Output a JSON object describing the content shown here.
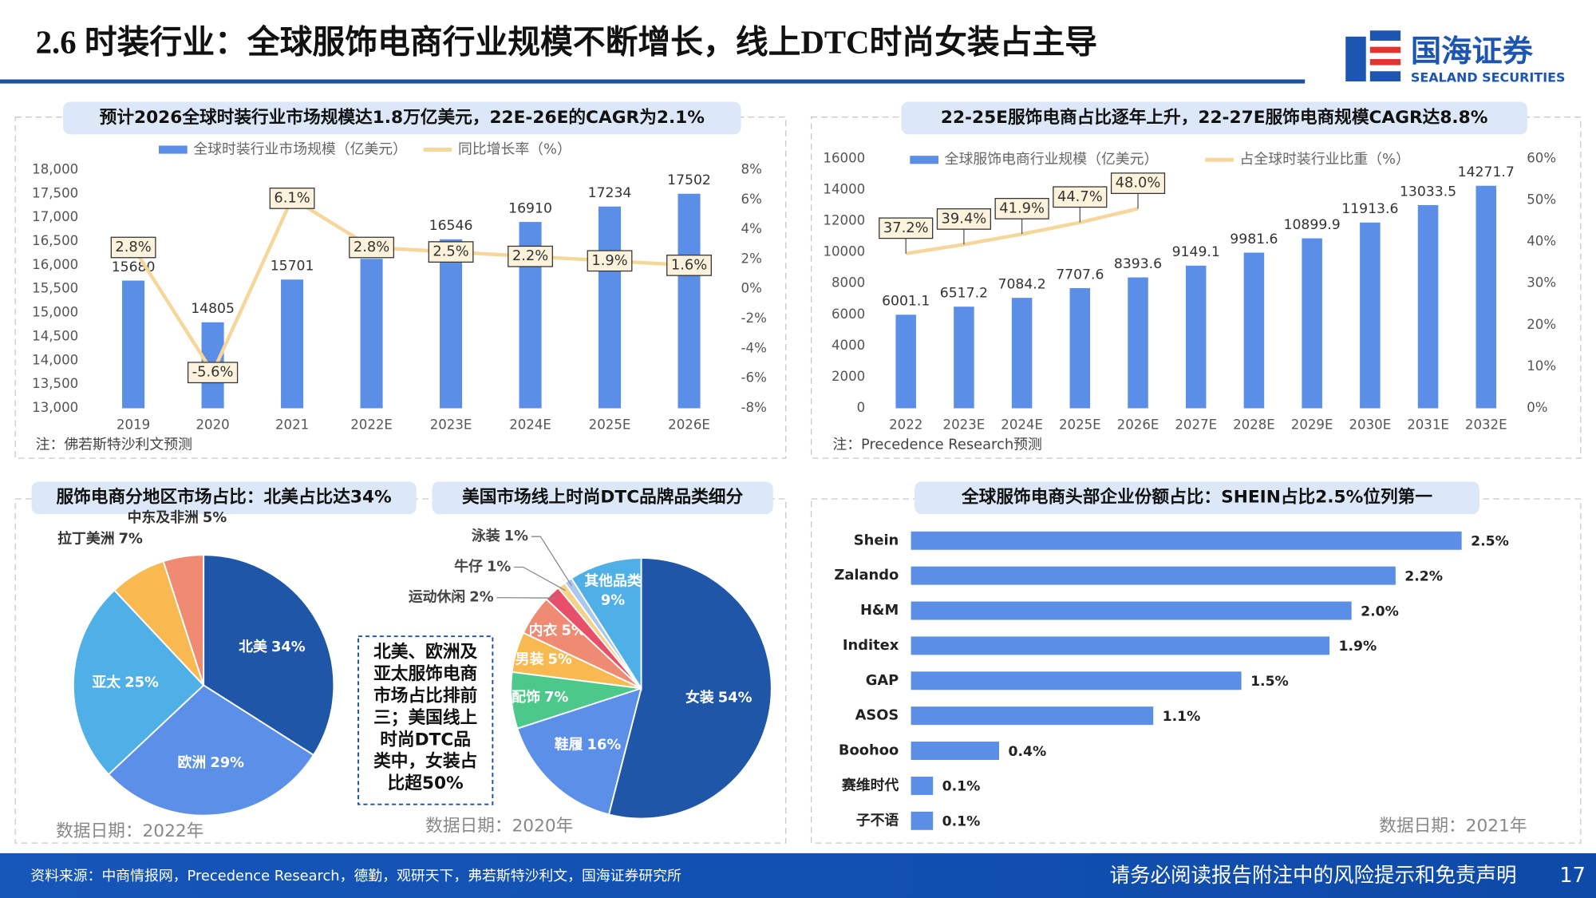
{
  "header": {
    "title": "2.6 时装行业：全球服饰电商行业规模不断增长，线上DTC时尚女装占主导",
    "logo": "国海证券",
    "logo_en": "SEALAND SECURITIES"
  },
  "chart_data": [
    {
      "type": "combo",
      "title": "预计2026全球时装行业市场规模达1.8万亿美元，22E-26E的CAGR为2.1%",
      "categories": [
        "2019",
        "2020",
        "2021",
        "2022E",
        "2023E",
        "2024E",
        "2025E",
        "2026E"
      ],
      "series": [
        {
          "name": "全球时装行业市场规模（亿美元）",
          "type": "bar",
          "color": "#5b8ee6",
          "values": [
            15680,
            14805,
            15701,
            16136,
            16546,
            16910,
            17234,
            17502
          ]
        },
        {
          "name": "同比增长率（%）",
          "type": "line",
          "axis": "y2",
          "color": "#f6d79b",
          "values": [
            2.8,
            -5.6,
            6.1,
            2.8,
            2.5,
            2.2,
            1.9,
            1.6
          ],
          "value_labels": [
            "2.8%",
            "-5.6%",
            "6.1%",
            "2.8%",
            "2.5%",
            "2.2%",
            "1.9%",
            "1.6%"
          ]
        }
      ],
      "ylim": [
        13000,
        18000
      ],
      "yticks": [
        {
          "value": 13000,
          "label": "13,000"
        },
        {
          "value": 13500,
          "label": "13,500"
        },
        {
          "value": 14000,
          "label": "14,000"
        },
        {
          "value": 14500,
          "label": "14,500"
        },
        {
          "value": 15000,
          "label": "15,000"
        },
        {
          "value": 15500,
          "label": "15,500"
        },
        {
          "value": 16000,
          "label": "16,000"
        },
        {
          "value": 16500,
          "label": "16,500"
        },
        {
          "value": 17000,
          "label": "17,000"
        },
        {
          "value": 17500,
          "label": "17,500"
        },
        {
          "value": 18000,
          "label": "18,000"
        }
      ],
      "y2lim": [
        -8,
        8
      ],
      "y2ticks": [
        {
          "value": -8,
          "label": "-8%"
        },
        {
          "value": -6,
          "label": "-6%"
        },
        {
          "value": -4,
          "label": "-4%"
        },
        {
          "value": -2,
          "label": "-2%"
        },
        {
          "value": 0,
          "label": "0%"
        },
        {
          "value": 2,
          "label": "2%"
        },
        {
          "value": 4,
          "label": "4%"
        },
        {
          "value": 6,
          "label": "6%"
        },
        {
          "value": 8,
          "label": "8%"
        }
      ],
      "grid": false,
      "note": "注：佛若斯特沙利文预测"
    },
    {
      "type": "combo",
      "title": "22-25E服饰电商占比逐年上升，22-27E服饰电商规模CAGR达8.8%",
      "categories": [
        "2022",
        "2023E",
        "2024E",
        "2025E",
        "2026E",
        "2027E",
        "2028E",
        "2029E",
        "2030E",
        "2031E",
        "2032E"
      ],
      "series": [
        {
          "name": "全球服饰电商行业规模（亿美元）",
          "type": "bar",
          "color": "#5b8ee6",
          "values": [
            6001.1,
            6517.2,
            7084.2,
            7707.6,
            8393.6,
            9149.1,
            9981.6,
            10899.9,
            11913.6,
            13033.5,
            14271.7
          ]
        },
        {
          "name": "占全球时装行业比重（%）",
          "type": "line",
          "axis": "y2",
          "color": "#f6d79b",
          "values": [
            37.2,
            39.4,
            41.9,
            44.7,
            48.0,
            null,
            null,
            null,
            null,
            null,
            null
          ],
          "value_labels": [
            "37.2%",
            "39.4%",
            "41.9%",
            "44.7%",
            "48.0%",
            null,
            null,
            null,
            null,
            null,
            null
          ]
        }
      ],
      "ylim": [
        0,
        16000
      ],
      "yticks": [
        0,
        2000,
        4000,
        6000,
        8000,
        10000,
        12000,
        14000,
        16000
      ],
      "y2lim": [
        0,
        60
      ],
      "y2ticks": [
        {
          "value": 0,
          "label": "0%"
        },
        {
          "value": 10,
          "label": "10%"
        },
        {
          "value": 20,
          "label": "20%"
        },
        {
          "value": 30,
          "label": "30%"
        },
        {
          "value": 40,
          "label": "40%"
        },
        {
          "value": 50,
          "label": "50%"
        },
        {
          "value": 60,
          "label": "60%"
        }
      ],
      "grid": false,
      "note": "注：Precedence Research预测"
    },
    {
      "type": "pie",
      "title": "服饰电商分地区市场占比：北美占比达34%",
      "categories": [
        "北美",
        "欧洲",
        "亚太",
        "拉丁美洲",
        "中东及非洲"
      ],
      "values": [
        34,
        29,
        25,
        7,
        5
      ],
      "value_labels": [
        "34%",
        "29%",
        "25%",
        "7%",
        "5%"
      ],
      "colors": [
        "#1f56a8",
        "#5b8fe8",
        "#4fb0e8",
        "#f7b950",
        "#ef8b72"
      ],
      "note": "数据日期：2022年"
    },
    {
      "type": "pie",
      "title": "美国市场线上时尚DTC品牌品类细分",
      "categories": [
        "女装",
        "鞋履",
        "配饰",
        "男装",
        "内衣",
        "运动休闲",
        "牛仔",
        "泳装",
        "其他品类"
      ],
      "values": [
        54,
        16,
        7,
        5,
        5,
        2,
        1,
        1,
        9
      ],
      "value_labels": [
        "54%",
        "16%",
        "7%",
        "5%",
        "5%",
        "2%",
        "1%",
        "1%",
        "9%"
      ],
      "colors": [
        "#1f56a8",
        "#5b8fe8",
        "#4cc98a",
        "#f7b950",
        "#ef8b72",
        "#e8506a",
        "#f5d28a",
        "#aac8f0",
        "#4fb0e8"
      ],
      "annotation": [
        "北美、欧洲及",
        "亚太服饰电商",
        "市场占比排前",
        "三；美国线上",
        "时尚DTC品",
        "类中，女装占",
        "比超50%"
      ],
      "note": "数据日期：2020年"
    },
    {
      "type": "hbar",
      "title": "全球服饰电商头部企业份额占比：SHEIN占比2.5%位列第一",
      "categories": [
        "Shein",
        "Zalando",
        "H&M",
        "Inditex",
        "GAP",
        "ASOS",
        "Boohoo",
        "赛维时代",
        "子不语"
      ],
      "values": [
        2.5,
        2.2,
        2.0,
        1.9,
        1.5,
        1.1,
        0.4,
        0.1,
        0.1
      ],
      "value_labels": [
        "2.5%",
        "2.2%",
        "2.0%",
        "1.9%",
        "1.5%",
        "1.1%",
        "0.4%",
        "0.1%",
        "0.1%"
      ],
      "color": "#5b8ee6",
      "note": "数据日期：2021年"
    }
  ],
  "footer": {
    "source": "资料来源：中商情报网，Precedence Research，德勤，观研天下，弗若斯特沙利文，国海证券研究所",
    "disclaimer": "请务必阅读报告附注中的风险提示和免责声明",
    "page": 17
  }
}
